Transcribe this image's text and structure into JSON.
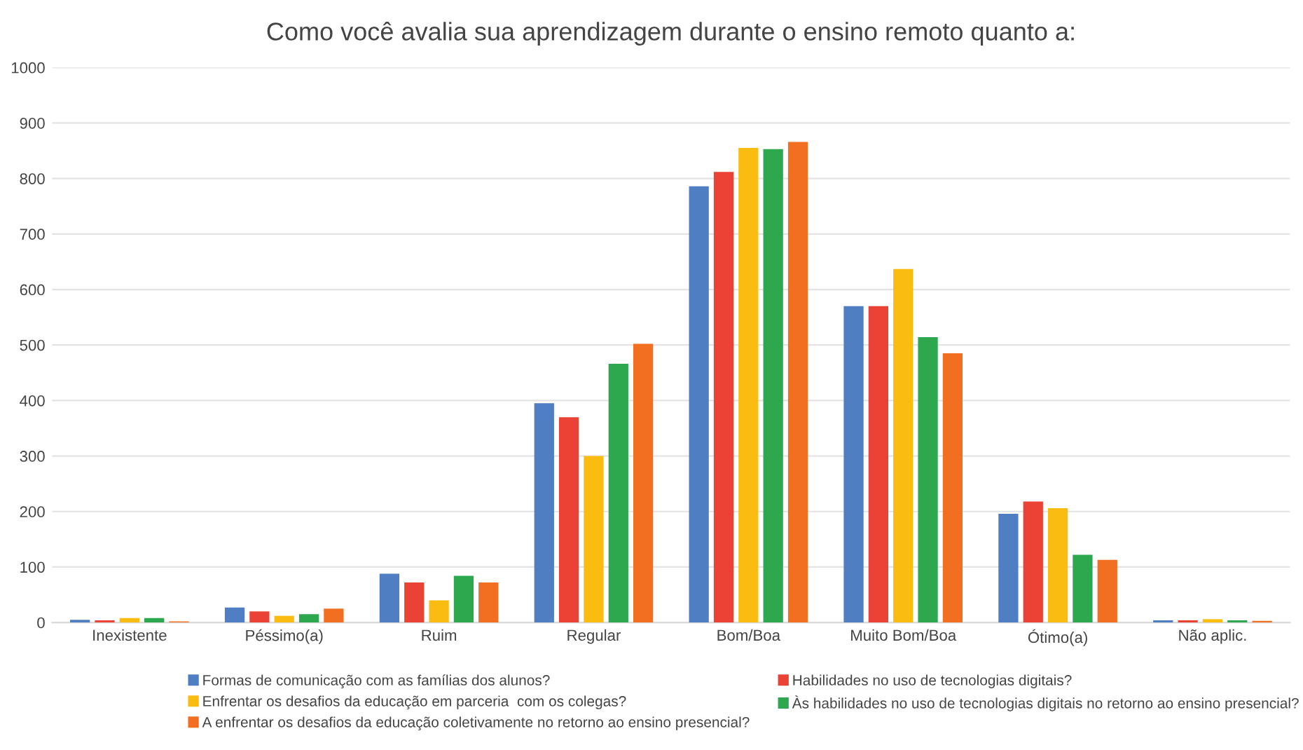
{
  "chart_data": {
    "type": "bar",
    "title": "Como você avalia sua aprendizagem durante o ensino remoto quanto a:",
    "categories": [
      "Inexistente",
      "Péssimo(a)",
      "Ruim",
      "Regular",
      "Bom/Boa",
      "Muito Bom/Boa",
      "Ótimo(a)",
      "Não aplic."
    ],
    "series": [
      {
        "name": "Formas de comunicação com as famílias dos alunos?",
        "color": "#4f7fc2",
        "values": [
          5,
          27,
          88,
          395,
          786,
          570,
          196,
          4
        ]
      },
      {
        "name": "Habilidades no uso de tecnologias digitais?",
        "color": "#ea4335",
        "values": [
          4,
          20,
          72,
          370,
          812,
          570,
          218,
          4
        ]
      },
      {
        "name": "Enfrentar os desafios da educação em parceria  com os colegas?",
        "color": "#fbbc12",
        "values": [
          8,
          12,
          40,
          300,
          855,
          637,
          206,
          6
        ]
      },
      {
        "name": "Às habilidades no uso de tecnologias digitais no retorno ao ensino presencial?",
        "color": "#2ea84f",
        "values": [
          8,
          15,
          84,
          466,
          853,
          514,
          122,
          4
        ]
      },
      {
        "name": "A enfrentar os desafios da educação coletivamente no retorno ao ensino presencial?",
        "color": "#f26f22",
        "values": [
          2,
          25,
          72,
          502,
          866,
          485,
          113,
          3
        ]
      }
    ],
    "ylim": [
      0,
      1000
    ],
    "yticks": [
      0,
      100,
      200,
      300,
      400,
      500,
      600,
      700,
      800,
      900,
      1000
    ],
    "grid": "y",
    "legend": "bottom"
  }
}
